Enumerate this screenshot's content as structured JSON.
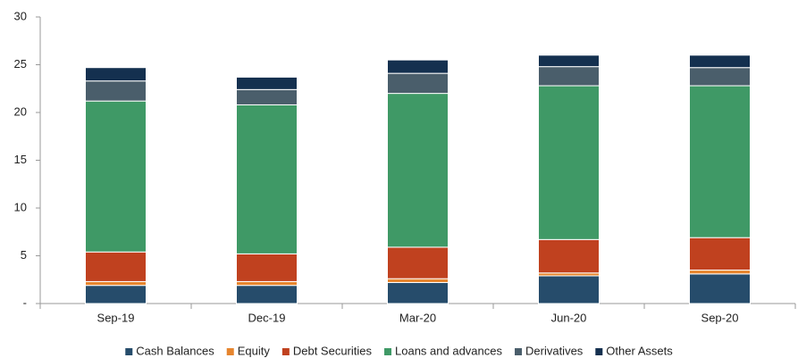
{
  "chart_data": {
    "type": "stacked_bar",
    "categories": [
      "Sep-19",
      "Dec-19",
      "Mar-20",
      "Jun-20",
      "Sep-20"
    ],
    "series": [
      {
        "name": "Cash Balances",
        "color": "#264c6b",
        "values": [
          1.9,
          1.9,
          2.2,
          2.9,
          3.1
        ]
      },
      {
        "name": "Equity",
        "color": "#e6852e",
        "values": [
          0.4,
          0.4,
          0.4,
          0.3,
          0.4
        ]
      },
      {
        "name": "Debt Securities",
        "color": "#c0411f",
        "values": [
          3.1,
          2.9,
          3.3,
          3.5,
          3.4
        ]
      },
      {
        "name": "Loans and advances",
        "color": "#3f9966",
        "values": [
          15.8,
          15.6,
          16.1,
          16.1,
          15.9
        ]
      },
      {
        "name": "Derivatives",
        "color": "#4a5e6b",
        "values": [
          2.1,
          1.6,
          2.1,
          2.0,
          1.9
        ]
      },
      {
        "name": "Other Assets",
        "color": "#14304f",
        "values": [
          1.4,
          1.3,
          1.4,
          1.2,
          1.3
        ]
      }
    ],
    "ylim": [
      0,
      30
    ],
    "yticks": [
      {
        "value": 0,
        "label": "-"
      },
      5,
      10,
      15,
      20,
      25,
      30
    ],
    "grid": false,
    "legend": "bottom"
  }
}
